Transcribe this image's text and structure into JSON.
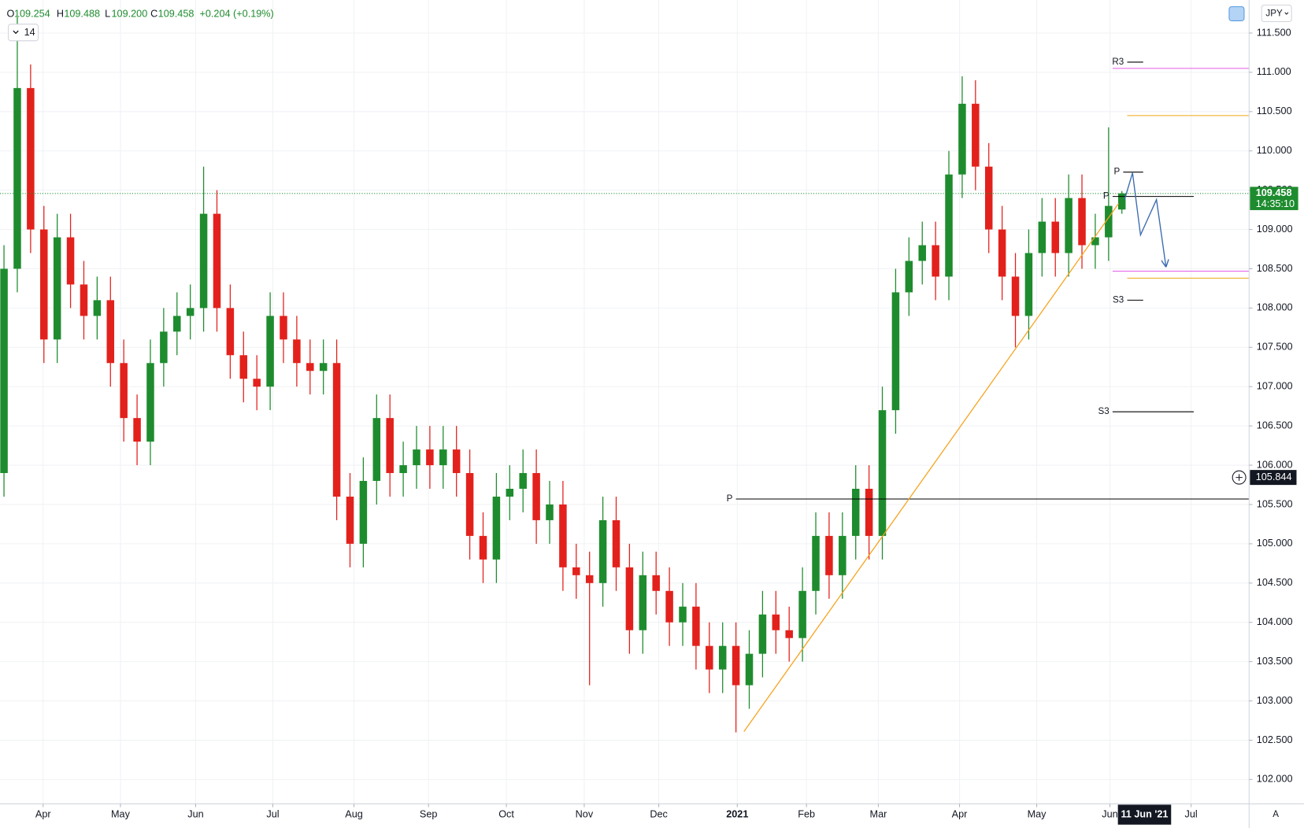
{
  "chart_data": {
    "type": "candlestick",
    "ohlc_labels": [
      "O",
      "H",
      "L",
      "C"
    ],
    "ohlc_value_labels": [
      "109.254",
      "109.488",
      "109.200",
      "109.458"
    ],
    "change_label": "+0.204 (+0.19%)",
    "indicator_badge": "14",
    "currency": "JPY",
    "auto_button": "A",
    "up_color": "#1e8c2e",
    "down_color": "#e3211c",
    "grid": true,
    "xlim": [
      -0.3,
      93.56
    ],
    "ylim": [
      101.69,
      111.92
    ],
    "xticks": [
      {
        "value": 2.94,
        "label": "Apr"
      },
      {
        "value": 8.75,
        "label": "May"
      },
      {
        "value": 14.4,
        "label": "Jun"
      },
      {
        "value": 20.2,
        "label": "Jul"
      },
      {
        "value": 26.3,
        "label": "Aug"
      },
      {
        "value": 31.9,
        "label": "Sep"
      },
      {
        "value": 37.75,
        "label": "Oct"
      },
      {
        "value": 43.6,
        "label": "Nov"
      },
      {
        "value": 49.2,
        "label": "Dec"
      },
      {
        "value": 55.1,
        "label": "2021"
      },
      {
        "value": 60.3,
        "label": "Feb"
      },
      {
        "value": 65.7,
        "label": "Mar"
      },
      {
        "value": 71.8,
        "label": "Apr"
      },
      {
        "value": 77.6,
        "label": "May"
      },
      {
        "value": 83.1,
        "label": "Jun"
      },
      {
        "value": 89.2,
        "label": "Jul"
      }
    ],
    "yticks": [
      {
        "value": 102,
        "label": "102.000"
      },
      {
        "value": 102.5,
        "label": "102.500"
      },
      {
        "value": 103,
        "label": "103.000"
      },
      {
        "value": 103.5,
        "label": "103.500"
      },
      {
        "value": 104,
        "label": "104.000"
      },
      {
        "value": 104.5,
        "label": "104.500"
      },
      {
        "value": 105,
        "label": "105.000"
      },
      {
        "value": 105.5,
        "label": "105.500"
      },
      {
        "value": 106,
        "label": "106.000"
      },
      {
        "value": 106.5,
        "label": "106.500"
      },
      {
        "value": 107,
        "label": "107.000"
      },
      {
        "value": 107.5,
        "label": "107.500"
      },
      {
        "value": 108,
        "label": "108.000"
      },
      {
        "value": 108.5,
        "label": "108.500"
      },
      {
        "value": 109,
        "label": "109.000"
      },
      {
        "value": 109.5,
        "label": "109.500"
      },
      {
        "value": 110,
        "label": "110.000"
      },
      {
        "value": 110.5,
        "label": "110.500"
      },
      {
        "value": 111,
        "label": "111.000"
      },
      {
        "value": 111.5,
        "label": "111.500"
      }
    ],
    "open": [
      105.9,
      108.5,
      110.8,
      109.0,
      107.6,
      108.9,
      108.3,
      107.9,
      108.1,
      107.3,
      106.6,
      106.3,
      107.3,
      107.7,
      107.9,
      108.0,
      109.2,
      108.0,
      107.4,
      107.1,
      107.0,
      107.9,
      107.6,
      107.3,
      107.2,
      107.3,
      105.6,
      105.0,
      105.8,
      106.6,
      105.9,
      106.0,
      106.2,
      106.0,
      106.2,
      105.9,
      105.1,
      104.8,
      105.6,
      105.7,
      105.9,
      105.3,
      105.5,
      104.7,
      104.6,
      104.5,
      105.3,
      104.7,
      103.9,
      104.6,
      104.4,
      104.0,
      104.2,
      103.7,
      103.4,
      103.7,
      103.2,
      103.6,
      104.1,
      103.9,
      103.8,
      104.4,
      105.1,
      104.6,
      105.1,
      105.7,
      105.1,
      106.7,
      108.2,
      108.6,
      108.8,
      108.4,
      109.7,
      110.6,
      109.8,
      109.0,
      108.4,
      107.9,
      108.7,
      109.1,
      108.7,
      109.4,
      108.8,
      108.9,
      109.254
    ],
    "high": [
      108.8,
      111.7,
      111.1,
      109.3,
      109.2,
      109.2,
      108.6,
      108.4,
      108.4,
      107.6,
      106.9,
      107.6,
      108.0,
      108.2,
      108.3,
      109.8,
      109.5,
      108.3,
      107.7,
      107.4,
      108.2,
      108.2,
      107.9,
      107.6,
      107.6,
      107.6,
      105.9,
      106.1,
      106.9,
      106.9,
      106.3,
      106.5,
      106.5,
      106.5,
      106.5,
      106.2,
      105.4,
      105.9,
      106.0,
      106.2,
      106.2,
      105.8,
      105.8,
      105.0,
      104.9,
      105.6,
      105.6,
      105.0,
      104.9,
      104.9,
      104.7,
      104.5,
      104.5,
      104.0,
      104.0,
      104.0,
      103.9,
      104.4,
      104.4,
      104.2,
      104.7,
      105.4,
      105.4,
      105.4,
      106.0,
      106.0,
      107.0,
      108.5,
      108.9,
      109.1,
      109.1,
      110.0,
      110.95,
      110.9,
      110.1,
      109.3,
      108.7,
      109.0,
      109.4,
      109.4,
      109.7,
      109.7,
      109.2,
      110.3,
      109.488
    ],
    "low": [
      105.6,
      108.2,
      108.7,
      107.3,
      107.3,
      108.0,
      107.6,
      107.6,
      107.0,
      106.3,
      106.0,
      106.0,
      107.0,
      107.4,
      107.6,
      107.7,
      107.7,
      107.1,
      106.8,
      106.7,
      106.7,
      107.3,
      107.0,
      106.9,
      106.9,
      105.3,
      104.7,
      104.7,
      105.5,
      105.6,
      105.6,
      105.7,
      105.7,
      105.7,
      105.6,
      104.8,
      104.5,
      104.5,
      105.3,
      105.4,
      105.0,
      105.0,
      104.4,
      104.3,
      103.2,
      104.2,
      104.4,
      103.6,
      103.6,
      104.1,
      103.7,
      103.7,
      103.4,
      103.1,
      103.1,
      102.6,
      102.9,
      103.3,
      103.6,
      103.5,
      103.5,
      104.1,
      104.3,
      104.3,
      104.8,
      104.8,
      104.8,
      106.4,
      107.9,
      108.3,
      108.1,
      108.1,
      109.4,
      109.5,
      108.7,
      108.1,
      107.5,
      107.6,
      108.4,
      108.4,
      108.4,
      108.5,
      108.5,
      108.6,
      109.2
    ],
    "close": [
      108.5,
      110.8,
      109.0,
      107.6,
      108.9,
      108.3,
      107.9,
      108.1,
      107.3,
      106.6,
      106.3,
      107.3,
      107.7,
      107.9,
      108.0,
      109.2,
      108.0,
      107.4,
      107.1,
      107.0,
      107.9,
      107.6,
      107.3,
      107.2,
      107.3,
      105.6,
      105.0,
      105.8,
      106.6,
      105.9,
      106.0,
      106.2,
      106.0,
      106.2,
      105.9,
      105.1,
      104.8,
      105.6,
      105.7,
      105.9,
      105.3,
      105.5,
      104.7,
      104.6,
      104.5,
      105.3,
      104.7,
      103.9,
      104.6,
      104.4,
      104.0,
      104.2,
      103.7,
      103.4,
      103.7,
      103.2,
      103.6,
      104.1,
      103.9,
      103.8,
      104.4,
      105.1,
      104.6,
      105.1,
      105.7,
      105.1,
      106.7,
      108.2,
      108.6,
      108.8,
      108.4,
      109.7,
      110.6,
      109.8,
      109.0,
      108.4,
      107.9,
      108.7,
      109.1,
      108.7,
      109.4,
      108.8,
      108.9,
      109.3,
      109.458
    ],
    "last_price": {
      "value": 109.458,
      "label": "109.458",
      "countdown": "14:35:10",
      "color": "#1e8c2e"
    },
    "crosshair_price": {
      "value": 105.844,
      "label": "105.844"
    },
    "crosshair_date": {
      "value": 85.7,
      "label": "11 Jun '21"
    },
    "levels": [
      {
        "label": "R3",
        "value": 111.13,
        "x": [
          84.4,
          85.6
        ],
        "color": "#000000"
      },
      {
        "value": 111.05,
        "x": [
          83.3,
          93.56
        ],
        "color": "#e45ce8"
      },
      {
        "value": 110.45,
        "x": [
          84.4,
          93.56
        ],
        "color": "#f0b030"
      },
      {
        "label": "P",
        "value": 109.73,
        "x": [
          84.1,
          85.6
        ],
        "color": "#000000"
      },
      {
        "label": "P",
        "value": 109.42,
        "x": [
          83.3,
          89.4
        ],
        "color": "#000000"
      },
      {
        "value": 108.47,
        "x": [
          83.3,
          93.56
        ],
        "color": "#e45ce8"
      },
      {
        "value": 108.38,
        "x": [
          84.4,
          93.56
        ],
        "color": "#f0b030"
      },
      {
        "label": "S3",
        "value": 108.1,
        "x": [
          84.4,
          85.6
        ],
        "color": "#000000"
      },
      {
        "label": "S3",
        "value": 106.68,
        "x": [
          83.3,
          89.4
        ],
        "color": "#000000"
      },
      {
        "label": "P",
        "value": 105.57,
        "x": [
          55.0,
          93.56
        ],
        "color": "#000000"
      }
    ],
    "trendline": {
      "x": [
        55.6,
        83.75
      ],
      "y": [
        102.61,
        109.33
      ],
      "color": "#f7a21b"
    },
    "forecast": {
      "x": [
        84.2,
        84.8,
        85.4,
        86.6,
        87.3
      ],
      "y": [
        109.38,
        109.72,
        108.93,
        109.38,
        108.54
      ],
      "color": "#3d6cb0"
    }
  }
}
